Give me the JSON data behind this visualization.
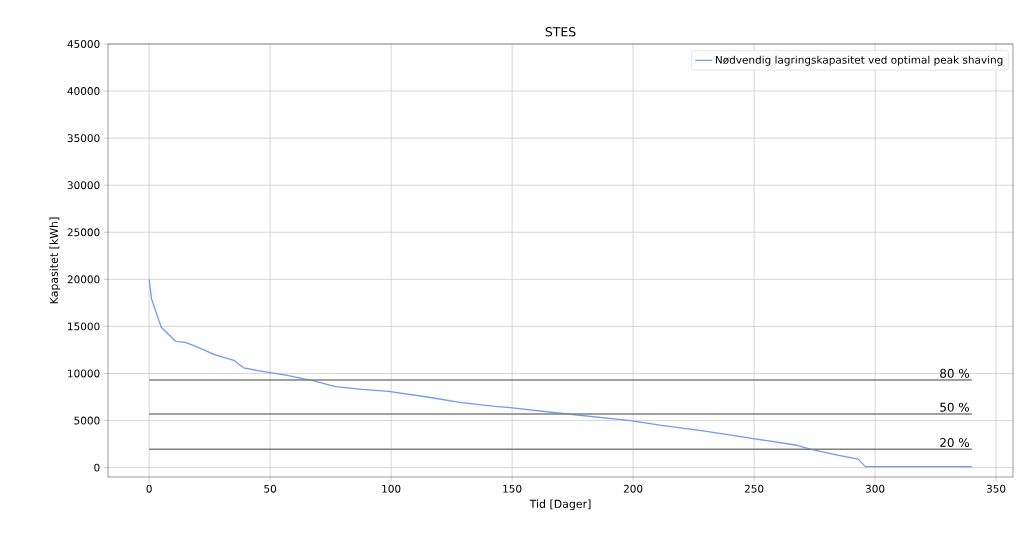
{
  "chart_data": {
    "type": "line",
    "title": "STES",
    "xlabel": "Tid [Dager]",
    "ylabel": "Kapasitet [kWh]",
    "series": [
      {
        "name": "Nødvendig lagringskapasitet ved optimal peak shaving",
        "color": "#6f9cf0",
        "x": [
          0,
          1,
          5,
          11,
          15,
          20,
          27,
          35,
          39,
          45,
          50,
          57,
          68,
          77,
          88,
          99,
          115,
          129,
          143,
          148,
          169,
          199,
          211,
          229,
          249,
          267,
          274,
          285,
          293,
          296,
          340
        ],
        "values": [
          20000,
          17900,
          14900,
          13400,
          13300,
          12800,
          12000,
          11400,
          10600,
          10300,
          10100,
          9800,
          9200,
          8600,
          8300,
          8100,
          7500,
          6900,
          6500,
          6400,
          5800,
          5000,
          4500,
          3900,
          3100,
          2400,
          1900,
          1300,
          900,
          100,
          100
        ]
      }
    ],
    "ref_lines": [
      {
        "axis": "y",
        "value": 9300,
        "color": "#808080"
      },
      {
        "axis": "y",
        "value": 5700,
        "color": "#808080"
      },
      {
        "axis": "y",
        "value": 1950,
        "color": "#808080"
      }
    ],
    "annotations": [
      {
        "text": "80 %",
        "y": 9300
      },
      {
        "text": "50 %",
        "y": 5700
      },
      {
        "text": "20 %",
        "y": 1950
      }
    ],
    "xlim": [
      -17,
      357
    ],
    "ylim": [
      -1000,
      45000
    ],
    "xticks": [
      0,
      50,
      100,
      150,
      200,
      250,
      300,
      350
    ],
    "yticks": [
      0,
      5000,
      10000,
      15000,
      20000,
      25000,
      30000,
      35000,
      40000,
      45000
    ],
    "grid": true,
    "legend": "top right"
  }
}
